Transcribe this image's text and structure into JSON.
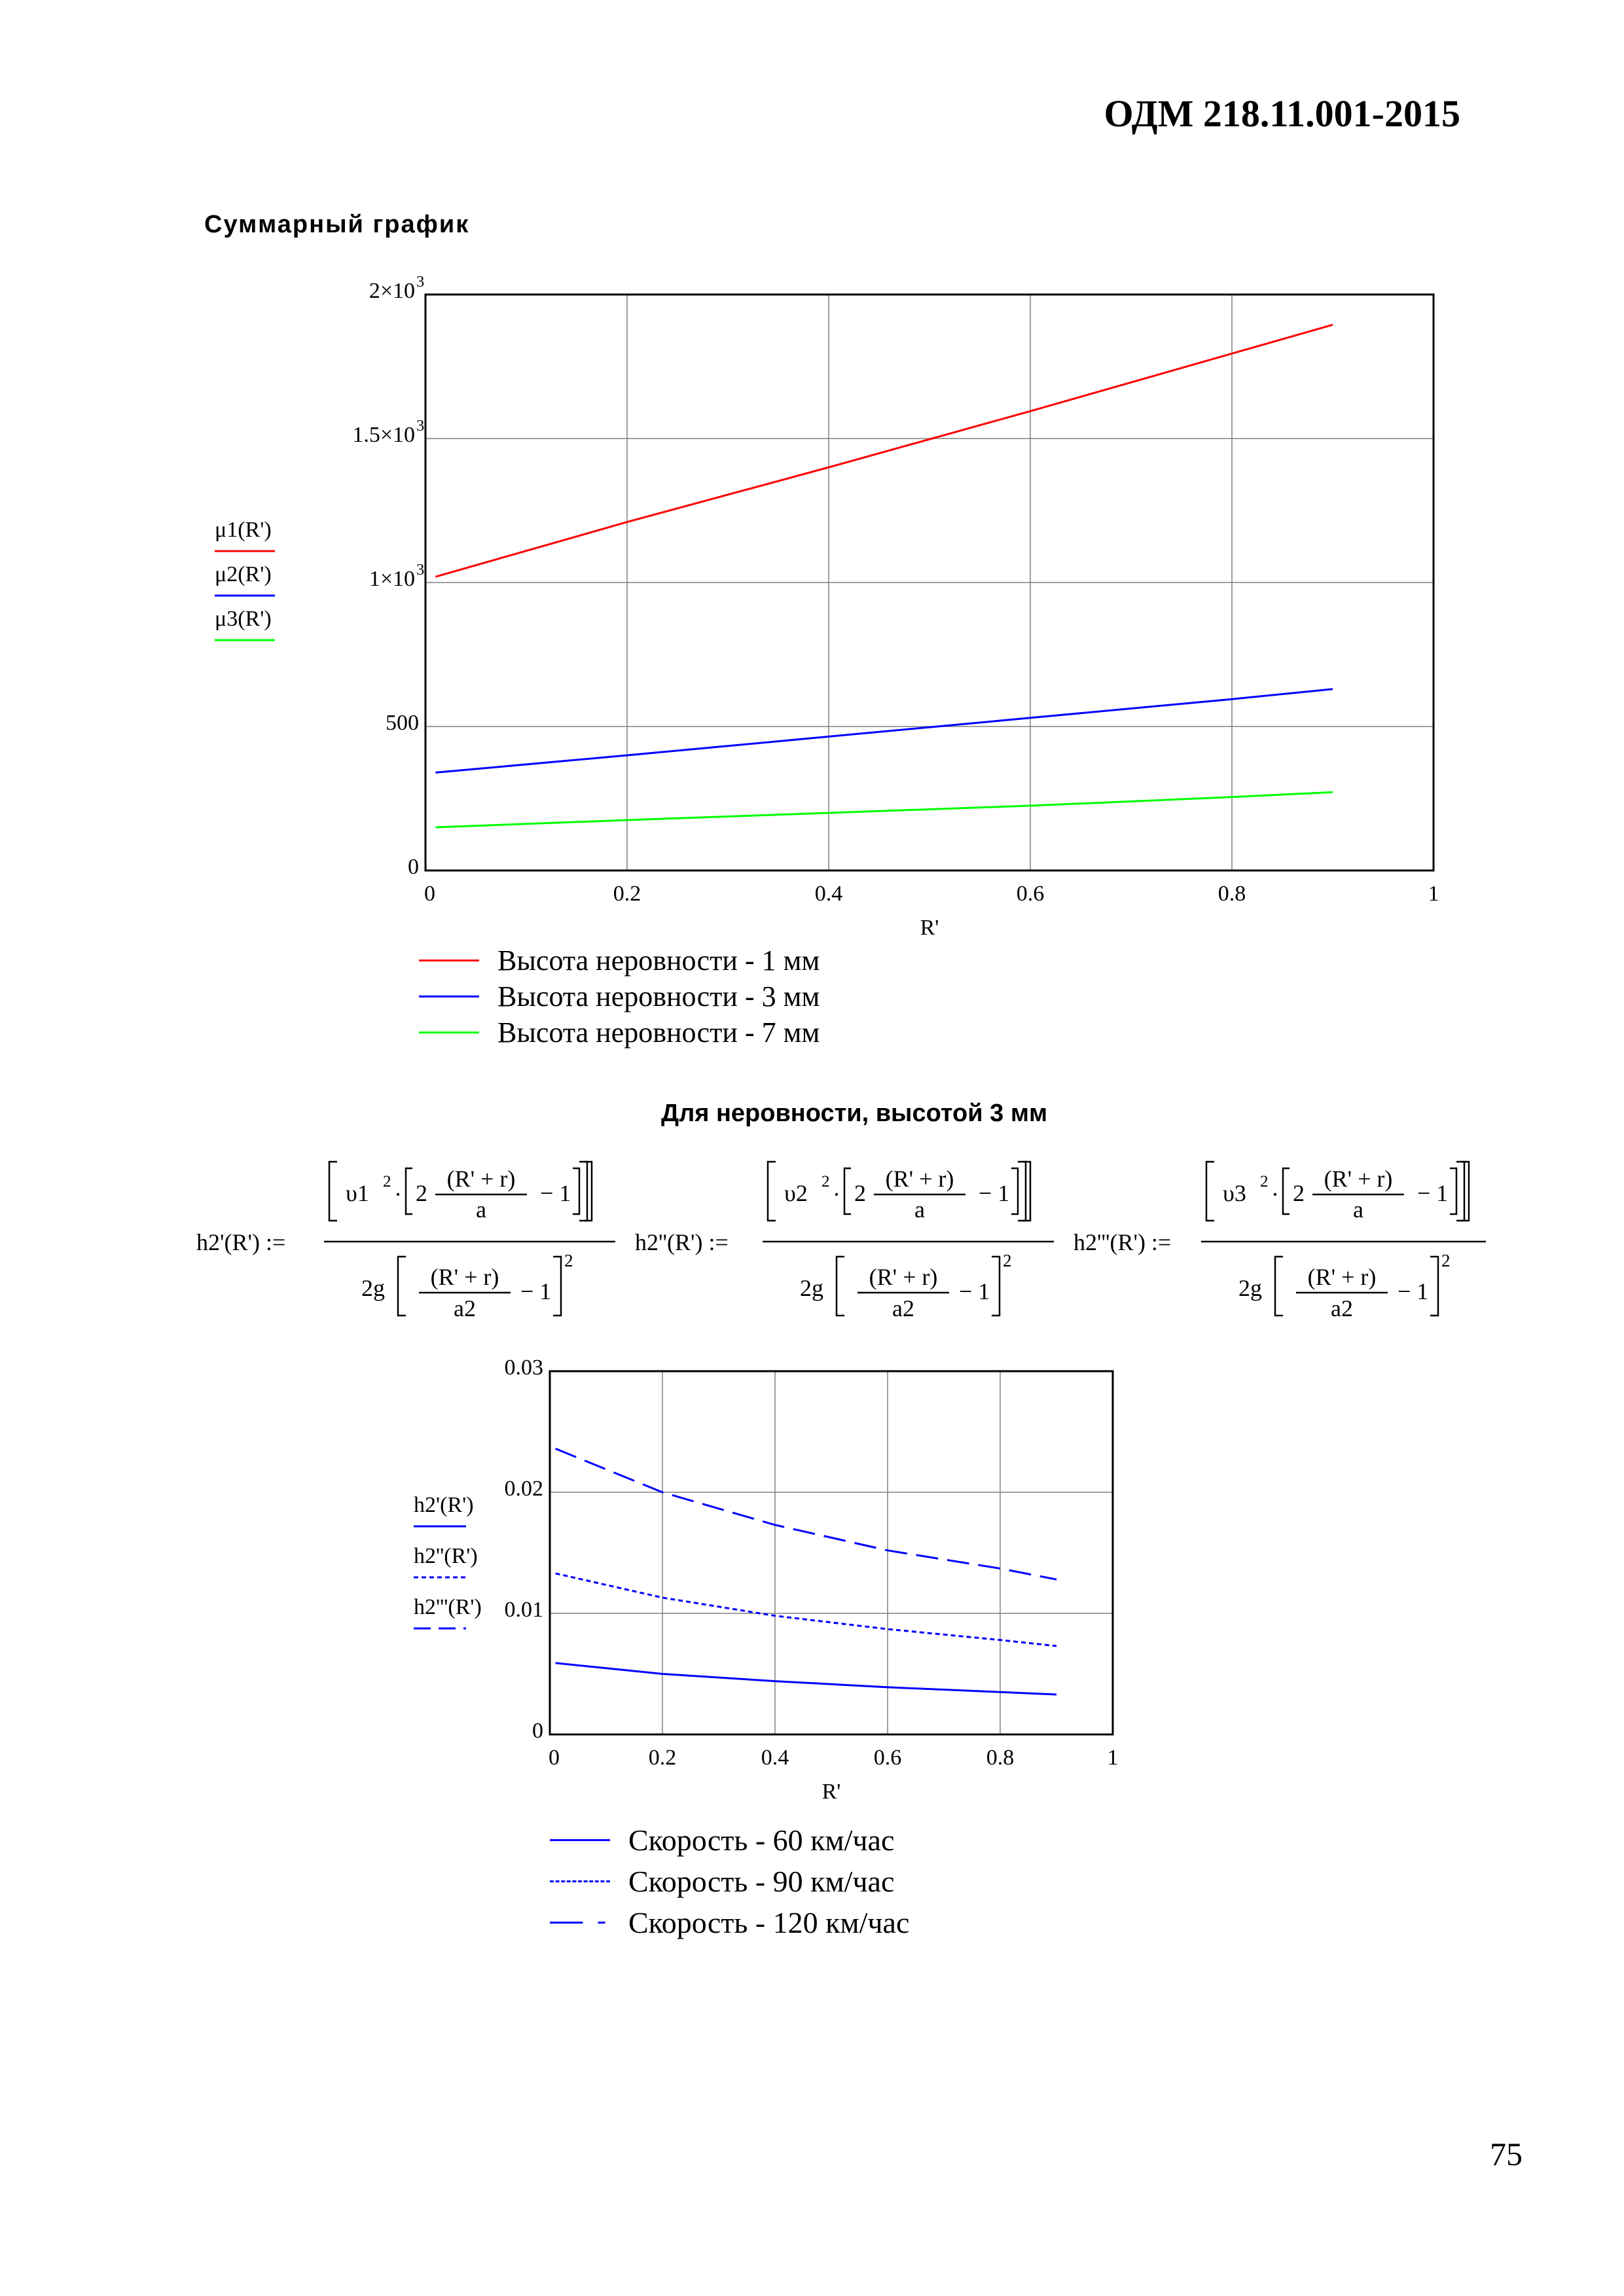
{
  "page": {
    "doc_code": "ОДМ 218.11.001-2015",
    "page_number": "75"
  },
  "section1": {
    "title": "Суммарный график"
  },
  "section2": {
    "title": "Для неровности, высотой 3 мм",
    "formulas": [
      {
        "lhs": "h2'(R') :=",
        "v": "υ1",
        "frac_num": "(R' + r)",
        "frac_den": "a",
        "den_coef": "2g",
        "den_frac_num": "(R' + r)",
        "den_frac_den": "a2"
      },
      {
        "lhs": "h2''(R') :=",
        "v": "υ2",
        "frac_num": "(R' + r)",
        "frac_den": "a",
        "den_coef": "2g",
        "den_frac_num": "(R' + r)",
        "den_frac_den": "a2"
      },
      {
        "lhs": "h2'''(R') :=",
        "v": "υ3",
        "frac_num": "(R' + r)",
        "frac_den": "a",
        "den_coef": "2g",
        "den_frac_num": "(R' + r)",
        "den_frac_den": "a2"
      }
    ]
  },
  "chart_data": [
    {
      "type": "line",
      "title": "",
      "xlabel": "R'",
      "ylabel": "",
      "xlim": [
        0,
        1
      ],
      "ylim": [
        0,
        2000
      ],
      "grid": true,
      "x_ticks": [
        "0",
        "0.2",
        "0.4",
        "0.6",
        "0.8",
        "1"
      ],
      "y_ticks": [
        {
          "value": 0,
          "base": "0",
          "exp": ""
        },
        {
          "value": 500,
          "base": "500",
          "exp": ""
        },
        {
          "value": 1000,
          "base": "1×10",
          "exp": "3"
        },
        {
          "value": 1500,
          "base": "1.5×10",
          "exp": "3"
        },
        {
          "value": 2000,
          "base": "2×10",
          "exp": "3"
        }
      ],
      "axis_legend": [
        "μ1(R')",
        "μ2(R')",
        "μ3(R')"
      ],
      "series": [
        {
          "name": "Высота неровности - 1 мм",
          "color": "#ff0000",
          "dash": "solid",
          "x": [
            0.01,
            0.2,
            0.4,
            0.6,
            0.8,
            0.9
          ],
          "values": [
            1020,
            1210,
            1400,
            1595,
            1795,
            1895
          ]
        },
        {
          "name": "Высота неровности - 3 мм",
          "color": "#0000ff",
          "dash": "solid",
          "x": [
            0.01,
            0.2,
            0.4,
            0.6,
            0.8,
            0.9
          ],
          "values": [
            340,
            400,
            465,
            530,
            595,
            630
          ]
        },
        {
          "name": "Высота неровности - 7 мм",
          "color": "#00ff00",
          "dash": "solid",
          "x": [
            0.01,
            0.2,
            0.4,
            0.6,
            0.8,
            0.9
          ],
          "values": [
            150,
            175,
            200,
            225,
            255,
            272
          ]
        }
      ]
    },
    {
      "type": "line",
      "title": "",
      "xlabel": "R'",
      "ylabel": "",
      "xlim": [
        0,
        1
      ],
      "ylim": [
        0,
        0.03
      ],
      "grid": true,
      "x_ticks": [
        "0",
        "0.2",
        "0.4",
        "0.6",
        "0.8",
        "1"
      ],
      "y_ticks": [
        {
          "value": 0,
          "base": "0",
          "exp": ""
        },
        {
          "value": 0.01,
          "base": "0.01",
          "exp": ""
        },
        {
          "value": 0.02,
          "base": "0.02",
          "exp": ""
        },
        {
          "value": 0.03,
          "base": "0.03",
          "exp": ""
        }
      ],
      "axis_legend": [
        "h2'(R')",
        "h2''(R')",
        "h2'''(R')"
      ],
      "series": [
        {
          "name": "Скорость - 60 км/час",
          "color": "#0000ff",
          "dash": "solid",
          "x": [
            0.01,
            0.2,
            0.4,
            0.6,
            0.8,
            0.9
          ],
          "values": [
            0.0059,
            0.005,
            0.0044,
            0.0039,
            0.0035,
            0.0033
          ]
        },
        {
          "name": "Скорость - 90 км/час",
          "color": "#0000ff",
          "dash": "dotted",
          "x": [
            0.01,
            0.2,
            0.4,
            0.6,
            0.8,
            0.9
          ],
          "values": [
            0.0133,
            0.0113,
            0.0098,
            0.0087,
            0.0078,
            0.0073
          ]
        },
        {
          "name": "Скорость - 120 км/час",
          "color": "#0000ff",
          "dash": "dashed",
          "x": [
            0.01,
            0.2,
            0.4,
            0.6,
            0.8,
            0.9
          ],
          "values": [
            0.0236,
            0.02,
            0.0173,
            0.0152,
            0.0137,
            0.0128
          ]
        }
      ]
    }
  ]
}
